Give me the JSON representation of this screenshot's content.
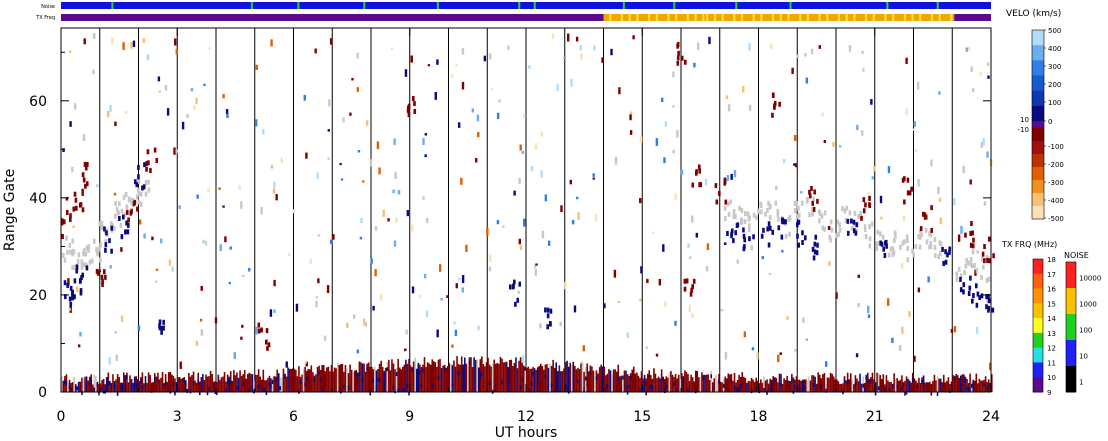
{
  "chart_data": {
    "type": "heatmap",
    "title": "",
    "xlabel": "UT hours",
    "ylabel": "Range Gate",
    "xlim": [
      0,
      24
    ],
    "ylim": [
      0,
      75
    ],
    "xticks": [
      "0",
      "3",
      "6",
      "9",
      "12",
      "15",
      "18",
      "21",
      "24"
    ],
    "yticks": [
      "0",
      "20",
      "40",
      "60"
    ],
    "top_strips": {
      "noise_label": "Noise",
      "txfreq_label": "TX Freq",
      "noise_base_color": "#1010e0",
      "noise_marker_color": "#30d030",
      "noise_marker_hours": [
        1.3,
        4.9,
        6.1,
        7.8,
        9.7,
        11.8,
        12.2,
        14.5,
        15.8,
        17.4,
        18.8,
        21.3,
        22.6
      ],
      "txfreq_segments": [
        {
          "start": 0,
          "end": 14,
          "color": "#5a0a8a"
        },
        {
          "start": 14,
          "end": 23.05,
          "color": "#f0a800"
        },
        {
          "start": 23.05,
          "end": 24,
          "color": "#5a0a8a"
        }
      ]
    },
    "vertical_lines_hours": [
      1,
      2,
      3,
      4,
      5,
      6,
      7,
      8,
      9,
      10,
      11,
      12,
      13,
      14,
      15,
      16,
      17,
      18,
      19,
      20,
      21,
      22,
      23
    ],
    "series": [
      {
        "name": "",
        "color": "#c8c8c8",
        "points": [
          [
            0.15,
            30
          ],
          [
            0.3,
            28
          ],
          [
            0.5,
            27
          ],
          [
            0.7,
            29
          ],
          [
            0.9,
            30
          ],
          [
            1.1,
            33
          ],
          [
            1.3,
            35
          ],
          [
            1.5,
            37
          ],
          [
            1.7,
            39
          ],
          [
            1.9,
            41
          ],
          [
            2.1,
            42
          ],
          [
            17.2,
            38
          ],
          [
            17.5,
            37
          ],
          [
            17.8,
            36
          ],
          [
            18.1,
            38
          ],
          [
            18.4,
            37
          ],
          [
            18.7,
            35
          ],
          [
            19,
            37
          ],
          [
            19.3,
            38
          ],
          [
            19.6,
            36
          ],
          [
            19.9,
            34
          ],
          [
            20.2,
            36
          ],
          [
            20.5,
            35
          ],
          [
            20.8,
            33
          ],
          [
            21.1,
            32
          ],
          [
            21.4,
            31
          ],
          [
            21.7,
            30
          ],
          [
            22,
            31
          ],
          [
            22.3,
            32
          ],
          [
            22.6,
            30
          ],
          [
            23.2,
            26
          ],
          [
            23.5,
            27
          ],
          [
            23.8,
            26
          ]
        ]
      },
      {
        "name": "",
        "color": "#0a0a80",
        "points": [
          [
            0.2,
            22
          ],
          [
            0.35,
            21
          ],
          [
            0.5,
            25
          ],
          [
            1.2,
            32
          ],
          [
            1.6,
            35
          ],
          [
            2.0,
            45
          ],
          [
            17.3,
            33
          ],
          [
            17.7,
            32
          ],
          [
            18.2,
            33
          ],
          [
            18.6,
            34
          ],
          [
            19.1,
            33
          ],
          [
            19.5,
            30
          ],
          [
            20.4,
            34
          ],
          [
            21.2,
            29
          ],
          [
            22.8,
            29
          ],
          [
            23.3,
            22
          ],
          [
            23.6,
            20
          ],
          [
            23.9,
            18
          ],
          [
            12.6,
            15
          ],
          [
            11.7,
            21
          ],
          [
            2.5,
            15
          ]
        ]
      },
      {
        "name": "",
        "color": "#800000",
        "points": [
          [
            0.1,
            35
          ],
          [
            0.4,
            40
          ],
          [
            0.6,
            45
          ],
          [
            1.0,
            24
          ],
          [
            1.8,
            38
          ],
          [
            2.3,
            48
          ],
          [
            16.4,
            45
          ],
          [
            16.2,
            22
          ],
          [
            17.0,
            42
          ],
          [
            19.4,
            40
          ],
          [
            20.7,
            38
          ],
          [
            22.3,
            36
          ],
          [
            23.4,
            33
          ],
          [
            23.9,
            30
          ],
          [
            5.2,
            12
          ],
          [
            9.0,
            60
          ],
          [
            16.0,
            70
          ],
          [
            18.4,
            60
          ],
          [
            21.8,
            42
          ]
        ]
      }
    ],
    "velo_colorbar": {
      "label": "VELO (km/s)",
      "ticks": [
        "500",
        "400",
        "300",
        "200",
        "100",
        "0",
        "10",
        "-10",
        "-100",
        "-200",
        "-300",
        "-400",
        "-500"
      ],
      "positive_colors": [
        "#b0dcf8",
        "#6aaef0",
        "#2f7fe8",
        "#1a5ad0",
        "#1038b0",
        "#0a0a80"
      ],
      "negative_colors": [
        "#800000",
        "#a01010",
        "#c03000",
        "#e06000",
        "#f09020",
        "#f8c070",
        "#fce0b8"
      ]
    },
    "txfrq_colorbar": {
      "label": "TX FRQ (MHz)",
      "ticks": [
        "18",
        "17",
        "16",
        "15",
        "14",
        "13",
        "12",
        "11",
        "10",
        "9"
      ],
      "colors": [
        "#ff2020",
        "#ff6010",
        "#ff9000",
        "#ffc000",
        "#ffff20",
        "#20d020",
        "#20e0e0",
        "#2020ff",
        "#5a0a8a"
      ]
    },
    "noise_colorbar": {
      "label": "NOISE",
      "ticks": [
        "10000",
        "1000",
        "100",
        "10",
        "1"
      ],
      "colors": [
        "#ff2020",
        "#ffc000",
        "#20d020",
        "#2020ff",
        "#000000"
      ]
    }
  }
}
